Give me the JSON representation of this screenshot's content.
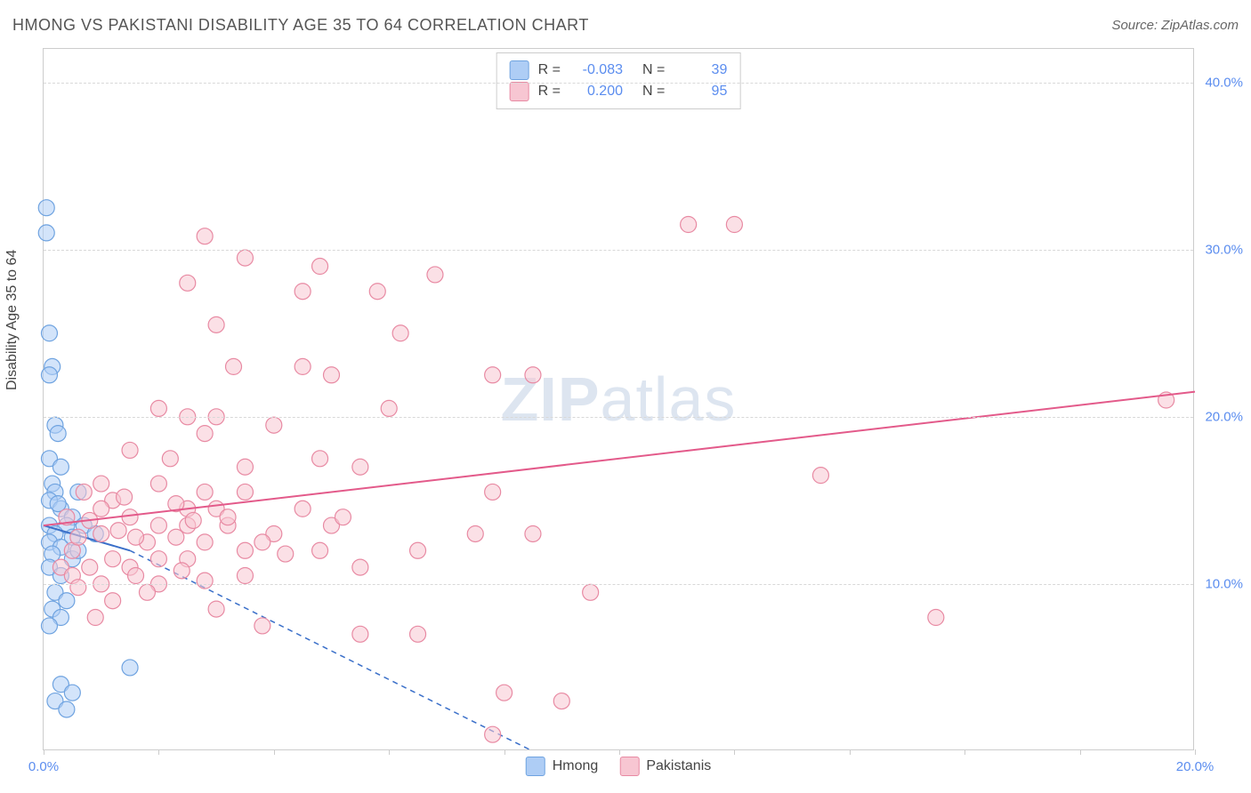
{
  "header": {
    "title": "HMONG VS PAKISTANI DISABILITY AGE 35 TO 64 CORRELATION CHART",
    "source": "Source: ZipAtlas.com"
  },
  "chart": {
    "type": "scatter",
    "ylabel": "Disability Age 35 to 64",
    "watermark_zip": "ZIP",
    "watermark_atlas": "atlas",
    "xlim": [
      0,
      20
    ],
    "ylim": [
      0,
      42
    ],
    "x_ticks": [
      0,
      2,
      4,
      6,
      8,
      10,
      12,
      14,
      16,
      18,
      20
    ],
    "x_tick_labels": {
      "0": "0.0%",
      "20": "20.0%"
    },
    "y_ticks": [
      10,
      20,
      30,
      40
    ],
    "y_tick_labels": {
      "10": "10.0%",
      "20": "20.0%",
      "30": "30.0%",
      "40": "40.0%"
    },
    "grid_color": "#d8d8d8",
    "background_color": "#ffffff",
    "colors": {
      "hmong_fill": "#aecdf5",
      "hmong_stroke": "#6fa3e0",
      "hmong_line": "#3a6fc9",
      "pakistani_fill": "#f7c6d2",
      "pakistani_stroke": "#e88aa3",
      "pakistani_line": "#e35a8a",
      "axis_label": "#5b8def"
    },
    "marker_radius": 9,
    "marker_opacity": 0.55,
    "line_width": 2,
    "series": [
      {
        "name": "Hmong",
        "color_fill": "#aecdf5",
        "color_stroke": "#6fa3e0",
        "line_color": "#3a6fc9",
        "r_value": "-0.083",
        "n_value": "39",
        "trend_solid": {
          "x1": 0,
          "y1": 13.5,
          "x2": 1.5,
          "y2": 12.0
        },
        "trend_dashed": {
          "x1": 1.5,
          "y1": 12.0,
          "x2": 8.5,
          "y2": 0
        },
        "points": [
          [
            0.05,
            32.5
          ],
          [
            0.05,
            31.0
          ],
          [
            0.1,
            25.0
          ],
          [
            0.15,
            23.0
          ],
          [
            0.1,
            22.5
          ],
          [
            0.2,
            19.5
          ],
          [
            0.25,
            19.0
          ],
          [
            0.1,
            17.5
          ],
          [
            0.3,
            17.0
          ],
          [
            0.15,
            16.0
          ],
          [
            0.2,
            15.5
          ],
          [
            0.6,
            15.5
          ],
          [
            0.1,
            15.0
          ],
          [
            0.3,
            14.5
          ],
          [
            0.5,
            14.0
          ],
          [
            0.1,
            13.5
          ],
          [
            0.4,
            13.5
          ],
          [
            0.7,
            13.5
          ],
          [
            0.2,
            13.0
          ],
          [
            0.5,
            12.8
          ],
          [
            0.9,
            13.0
          ],
          [
            0.1,
            12.5
          ],
          [
            0.3,
            12.2
          ],
          [
            0.15,
            11.8
          ],
          [
            0.5,
            11.5
          ],
          [
            0.1,
            11.0
          ],
          [
            0.3,
            10.5
          ],
          [
            0.2,
            9.5
          ],
          [
            0.4,
            9.0
          ],
          [
            0.15,
            8.5
          ],
          [
            0.3,
            8.0
          ],
          [
            0.1,
            7.5
          ],
          [
            1.5,
            5.0
          ],
          [
            0.3,
            4.0
          ],
          [
            0.5,
            3.5
          ],
          [
            0.2,
            3.0
          ],
          [
            0.4,
            2.5
          ],
          [
            0.25,
            14.8
          ],
          [
            0.6,
            12.0
          ]
        ]
      },
      {
        "name": "Pakistanis",
        "color_fill": "#f7c6d2",
        "color_stroke": "#e88aa3",
        "line_color": "#e35a8a",
        "r_value": "0.200",
        "n_value": "95",
        "trend_solid": {
          "x1": 0,
          "y1": 13.5,
          "x2": 20,
          "y2": 21.5
        },
        "trend_dashed": null,
        "points": [
          [
            11.2,
            31.5
          ],
          [
            12.0,
            31.5
          ],
          [
            2.8,
            30.8
          ],
          [
            3.5,
            29.5
          ],
          [
            4.8,
            29.0
          ],
          [
            2.5,
            28.0
          ],
          [
            6.8,
            28.5
          ],
          [
            4.5,
            27.5
          ],
          [
            5.8,
            27.5
          ],
          [
            3.0,
            25.5
          ],
          [
            6.2,
            25.0
          ],
          [
            3.3,
            23.0
          ],
          [
            4.5,
            23.0
          ],
          [
            5.0,
            22.5
          ],
          [
            7.8,
            22.5
          ],
          [
            8.5,
            22.5
          ],
          [
            2.0,
            20.5
          ],
          [
            2.5,
            20.0
          ],
          [
            3.0,
            20.0
          ],
          [
            2.8,
            19.0
          ],
          [
            4.0,
            19.5
          ],
          [
            1.5,
            18.0
          ],
          [
            2.2,
            17.5
          ],
          [
            3.5,
            17.0
          ],
          [
            4.8,
            17.5
          ],
          [
            5.5,
            17.0
          ],
          [
            13.5,
            16.5
          ],
          [
            1.0,
            16.0
          ],
          [
            2.0,
            16.0
          ],
          [
            2.8,
            15.5
          ],
          [
            3.5,
            15.5
          ],
          [
            7.8,
            15.5
          ],
          [
            1.2,
            15.0
          ],
          [
            2.5,
            14.5
          ],
          [
            3.0,
            14.5
          ],
          [
            4.5,
            14.5
          ],
          [
            1.5,
            14.0
          ],
          [
            2.0,
            13.5
          ],
          [
            2.5,
            13.5
          ],
          [
            3.2,
            13.5
          ],
          [
            5.0,
            13.5
          ],
          [
            7.5,
            13.0
          ],
          [
            8.5,
            13.0
          ],
          [
            1.0,
            13.0
          ],
          [
            1.8,
            12.5
          ],
          [
            2.8,
            12.5
          ],
          [
            3.5,
            12.0
          ],
          [
            4.8,
            12.0
          ],
          [
            0.5,
            12.0
          ],
          [
            1.2,
            11.5
          ],
          [
            2.0,
            11.5
          ],
          [
            2.5,
            11.5
          ],
          [
            5.5,
            11.0
          ],
          [
            0.3,
            11.0
          ],
          [
            0.8,
            11.0
          ],
          [
            1.5,
            11.0
          ],
          [
            3.5,
            10.5
          ],
          [
            2.0,
            10.0
          ],
          [
            1.0,
            10.0
          ],
          [
            0.5,
            10.5
          ],
          [
            1.8,
            9.5
          ],
          [
            9.5,
            9.5
          ],
          [
            3.0,
            8.5
          ],
          [
            15.5,
            8.0
          ],
          [
            5.5,
            7.0
          ],
          [
            6.5,
            7.0
          ],
          [
            8.0,
            3.5
          ],
          [
            9.0,
            3.0
          ],
          [
            7.8,
            1.0
          ],
          [
            0.8,
            13.8
          ],
          [
            1.3,
            13.2
          ],
          [
            0.6,
            12.8
          ],
          [
            1.6,
            12.8
          ],
          [
            2.3,
            12.8
          ],
          [
            0.4,
            14.0
          ],
          [
            1.0,
            14.5
          ],
          [
            1.4,
            15.2
          ],
          [
            0.7,
            15.5
          ],
          [
            2.3,
            14.8
          ],
          [
            3.2,
            14.0
          ],
          [
            4.0,
            13.0
          ],
          [
            2.6,
            13.8
          ],
          [
            3.8,
            12.5
          ],
          [
            4.2,
            11.8
          ],
          [
            1.6,
            10.5
          ],
          [
            2.4,
            10.8
          ],
          [
            0.6,
            9.8
          ],
          [
            1.2,
            9.0
          ],
          [
            0.9,
            8.0
          ],
          [
            2.8,
            10.2
          ],
          [
            19.5,
            21.0
          ],
          [
            6.0,
            20.5
          ],
          [
            5.2,
            14.0
          ],
          [
            6.5,
            12.0
          ],
          [
            3.8,
            7.5
          ]
        ]
      }
    ],
    "legend_bottom": [
      {
        "label": "Hmong",
        "fill": "#aecdf5",
        "stroke": "#6fa3e0"
      },
      {
        "label": "Pakistanis",
        "fill": "#f7c6d2",
        "stroke": "#e88aa3"
      }
    ]
  }
}
